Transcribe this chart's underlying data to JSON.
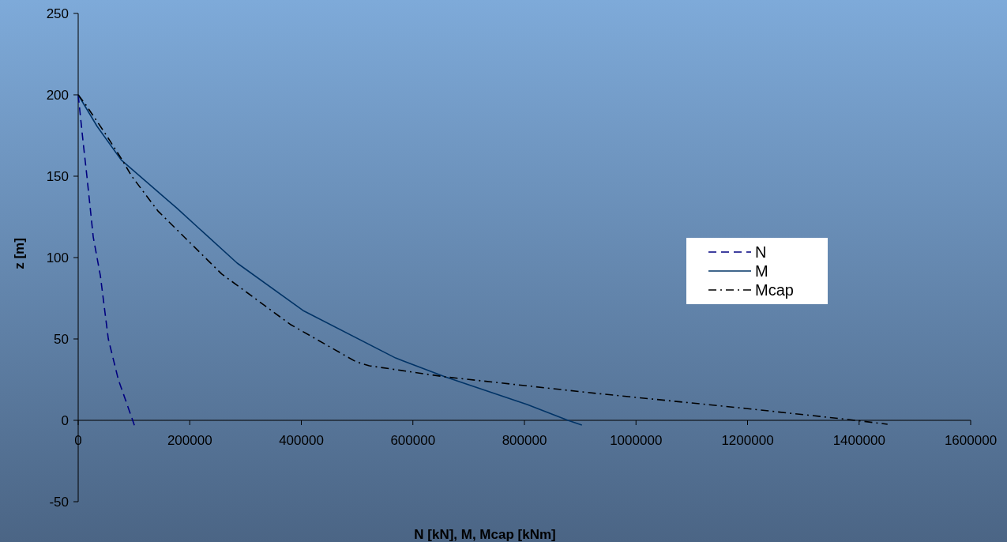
{
  "chart_data": {
    "type": "line",
    "xlabel": "N [kN],  M,  Mcap [kNm]",
    "ylabel": "z [m]",
    "xlim": [
      0,
      1600000
    ],
    "ylim": [
      -50,
      250
    ],
    "xticks": [
      0,
      200000,
      400000,
      600000,
      800000,
      1000000,
      1200000,
      1400000,
      1600000
    ],
    "yticks": [
      -50,
      0,
      50,
      100,
      150,
      200,
      250
    ],
    "grid": false,
    "legend": "right",
    "series": [
      {
        "name": "N",
        "color": "#000080",
        "line_style": "dashed",
        "x": [
          0,
          8500,
          15600,
          27000,
          39700,
          54000,
          72000,
          97700,
          100700
        ],
        "values": [
          200,
          172,
          150,
          112.6,
          89,
          50,
          25,
          0,
          -3
        ]
      },
      {
        "name": "M",
        "color": "#003366",
        "line_style": "solid",
        "x": [
          0,
          34000,
          77000,
          176000,
          285000,
          403000,
          569000,
          658000,
          805000,
          878000,
          903000
        ],
        "values": [
          200,
          180.6,
          160,
          130.6,
          96.6,
          67.5,
          38.3,
          26.7,
          9.7,
          0,
          -2.9
        ]
      },
      {
        "name": "Mcap",
        "color": "#000000",
        "line_style": "dashdot",
        "x": [
          0,
          14000,
          47000,
          77000,
          96000,
          143000,
          257000,
          380000,
          498000,
          522000,
          658000,
          930000,
          1197000,
          1381000,
          1451000
        ],
        "values": [
          200,
          193.7,
          177,
          161,
          150,
          128.6,
          90,
          59,
          36,
          33.5,
          26.7,
          16.5,
          7.3,
          0.5,
          -2.4
        ]
      }
    ]
  }
}
